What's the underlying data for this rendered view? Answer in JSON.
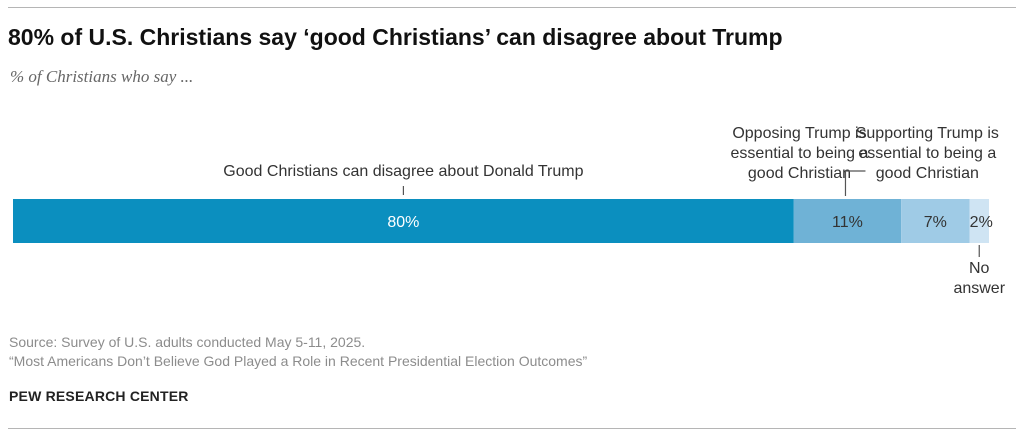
{
  "title": "80% of U.S. Christians say ‘good Christians’ can disagree about Trump",
  "subtitle": "% of Christians who say ...",
  "source_line": "Source: Survey of U.S. adults conducted May 5-11, 2025.",
  "report_line": "“Most Americans Don’t Believe God Played a Role in Recent Presidential Election Outcomes”",
  "organization": "PEW RESEARCH CENTER",
  "chart_data": {
    "type": "bar",
    "orientation": "horizontal",
    "stacked": true,
    "xlim": [
      0,
      100
    ],
    "categories": [
      ""
    ],
    "series": [
      {
        "name": "Good Christians can disagree about Donald Trump",
        "values": [
          80
        ],
        "value_label": "80%",
        "color": "#0b8fbf",
        "label_color": "#ffffff",
        "label_lines": [
          "Good Christians can disagree about Donald Trump"
        ]
      },
      {
        "name": "Opposing Trump is essential to being a good Christian",
        "values": [
          11
        ],
        "value_label": "11%",
        "color": "#6fb2d6",
        "label_color": "#333333",
        "label_lines": [
          "Opposing Trump is",
          "essential to being a",
          "good Christian"
        ]
      },
      {
        "name": "Supporting Trump is essential to being a good Christian",
        "values": [
          7
        ],
        "value_label": "7%",
        "color": "#9fcbe6",
        "label_color": "#333333",
        "label_lines": [
          "Supporting Trump is",
          "essential to being a",
          "good Christian"
        ]
      },
      {
        "name": "No answer",
        "values": [
          2
        ],
        "value_label": "2%",
        "color": "#cfe4f3",
        "label_color": "#333333",
        "label_lines": [
          "No",
          "answer"
        ]
      }
    ],
    "legend": "none",
    "grid": false
  }
}
